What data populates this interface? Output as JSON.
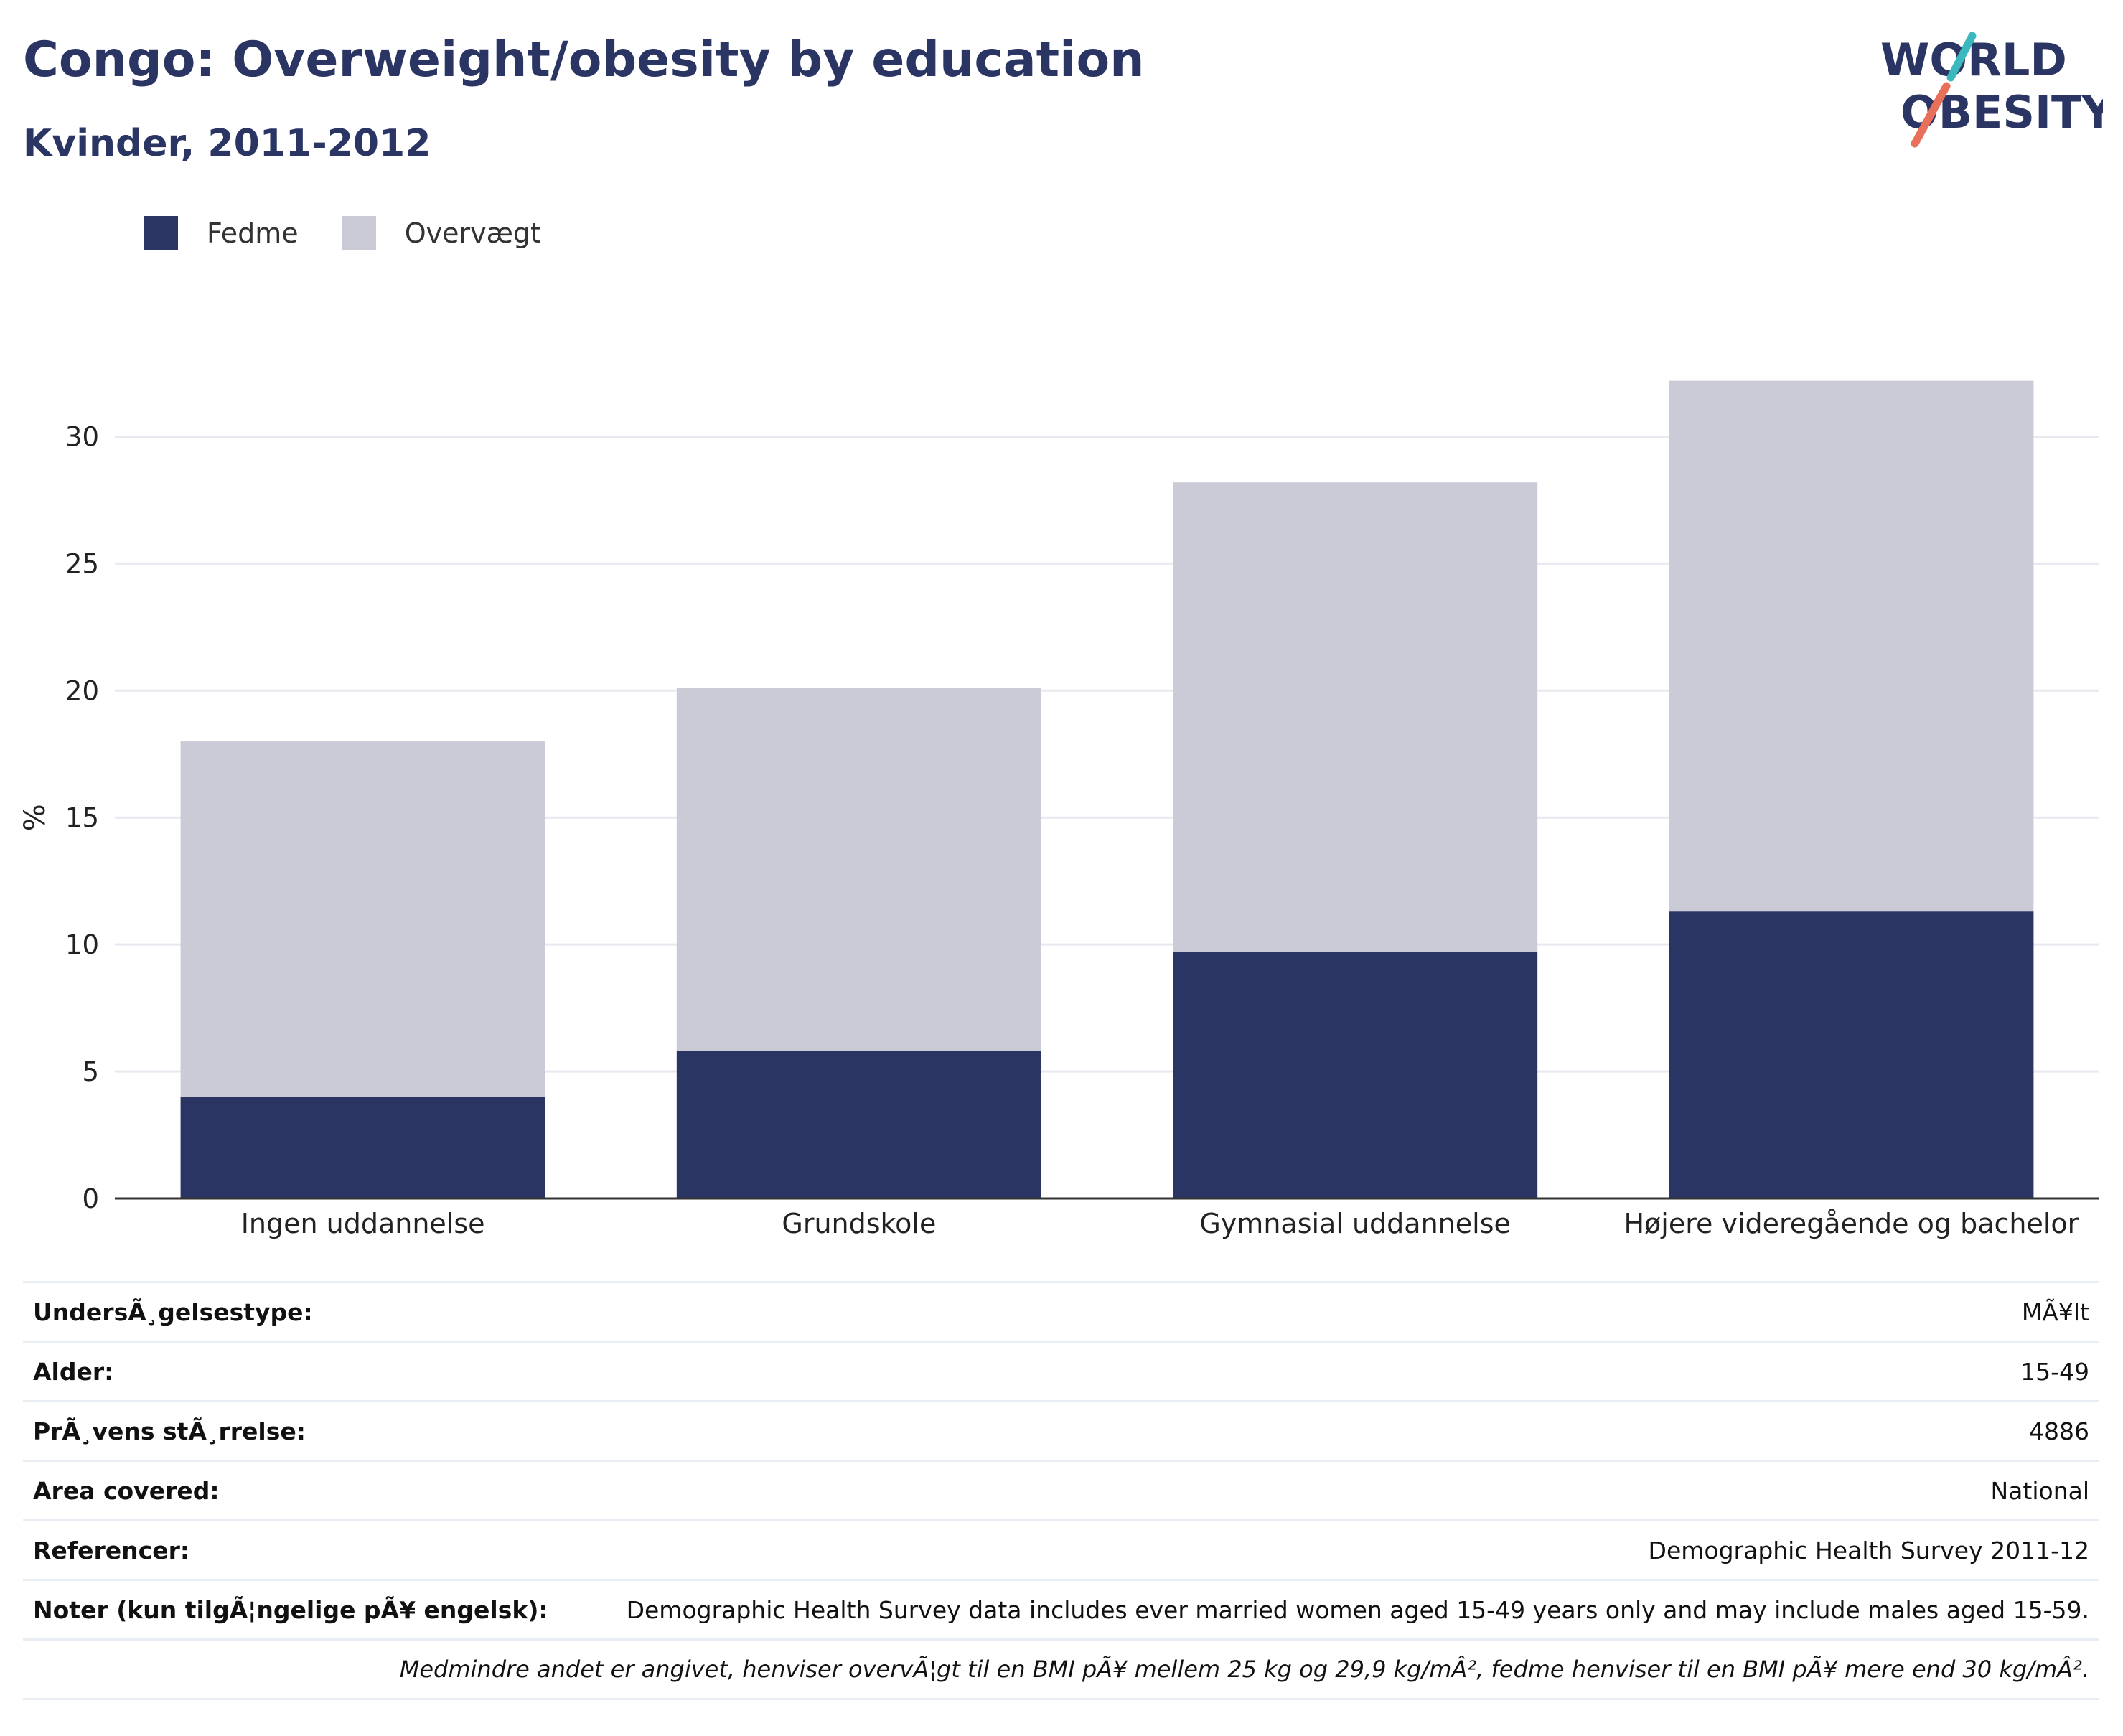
{
  "title": "Congo: Overweight/obesity by education",
  "subtitle": "Kvinder, 2011-2012",
  "logo": {
    "line1": "WORLD",
    "line2": "OBESITY",
    "accent_top": "#3ab8be",
    "accent_bottom": "#e8705a"
  },
  "colors": {
    "fedme": "#2a3563",
    "overvaegt": "#cacbd7",
    "text": "#2a3563",
    "grid": "#e6e9ef",
    "axis": "#333333"
  },
  "legend": [
    {
      "label": "Fedme",
      "color": "#2a3563"
    },
    {
      "label": "Overvægt",
      "color": "#cacbd7"
    }
  ],
  "chart_data": {
    "type": "bar",
    "stacked": true,
    "categories": [
      "Ingen uddannelse",
      "Grundskole",
      "Gymnasial uddannelse",
      "Højere videregående og bachelor"
    ],
    "series": [
      {
        "name": "Fedme",
        "values": [
          4.0,
          5.8,
          9.7,
          11.3
        ]
      },
      {
        "name": "Overvægt",
        "values": [
          14.0,
          14.3,
          18.5,
          20.9
        ]
      }
    ],
    "ylabel": "%",
    "ylim": [
      0,
      32.5
    ],
    "yticks": [
      0,
      5,
      10,
      15,
      20,
      25,
      30
    ],
    "grid": true,
    "legend_position": "top-left"
  },
  "info_rows": [
    {
      "label": "UndersÃ¸gelsestype:",
      "value": "MÃ¥lt"
    },
    {
      "label": "Alder:",
      "value": "15-49"
    },
    {
      "label": "PrÃ¸vens stÃ¸rrelse:",
      "value": "4886"
    },
    {
      "label": "Area covered:",
      "value": "National"
    },
    {
      "label": "Referencer:",
      "value": "Demographic Health Survey 2011-12"
    },
    {
      "label": "Noter (kun tilgÃ¦ngelige pÃ¥ engelsk):",
      "value": "Demographic Health Survey data includes ever married women aged 15-49 years only and may include males aged 15-59."
    }
  ],
  "footnote": "Medmindre andet er angivet, henviser overvÃ¦gt til en BMI pÃ¥ mellem 25 kg og 29,9 kg/mÂ², fedme henviser til en BMI pÃ¥ mere end 30 kg/mÂ²."
}
